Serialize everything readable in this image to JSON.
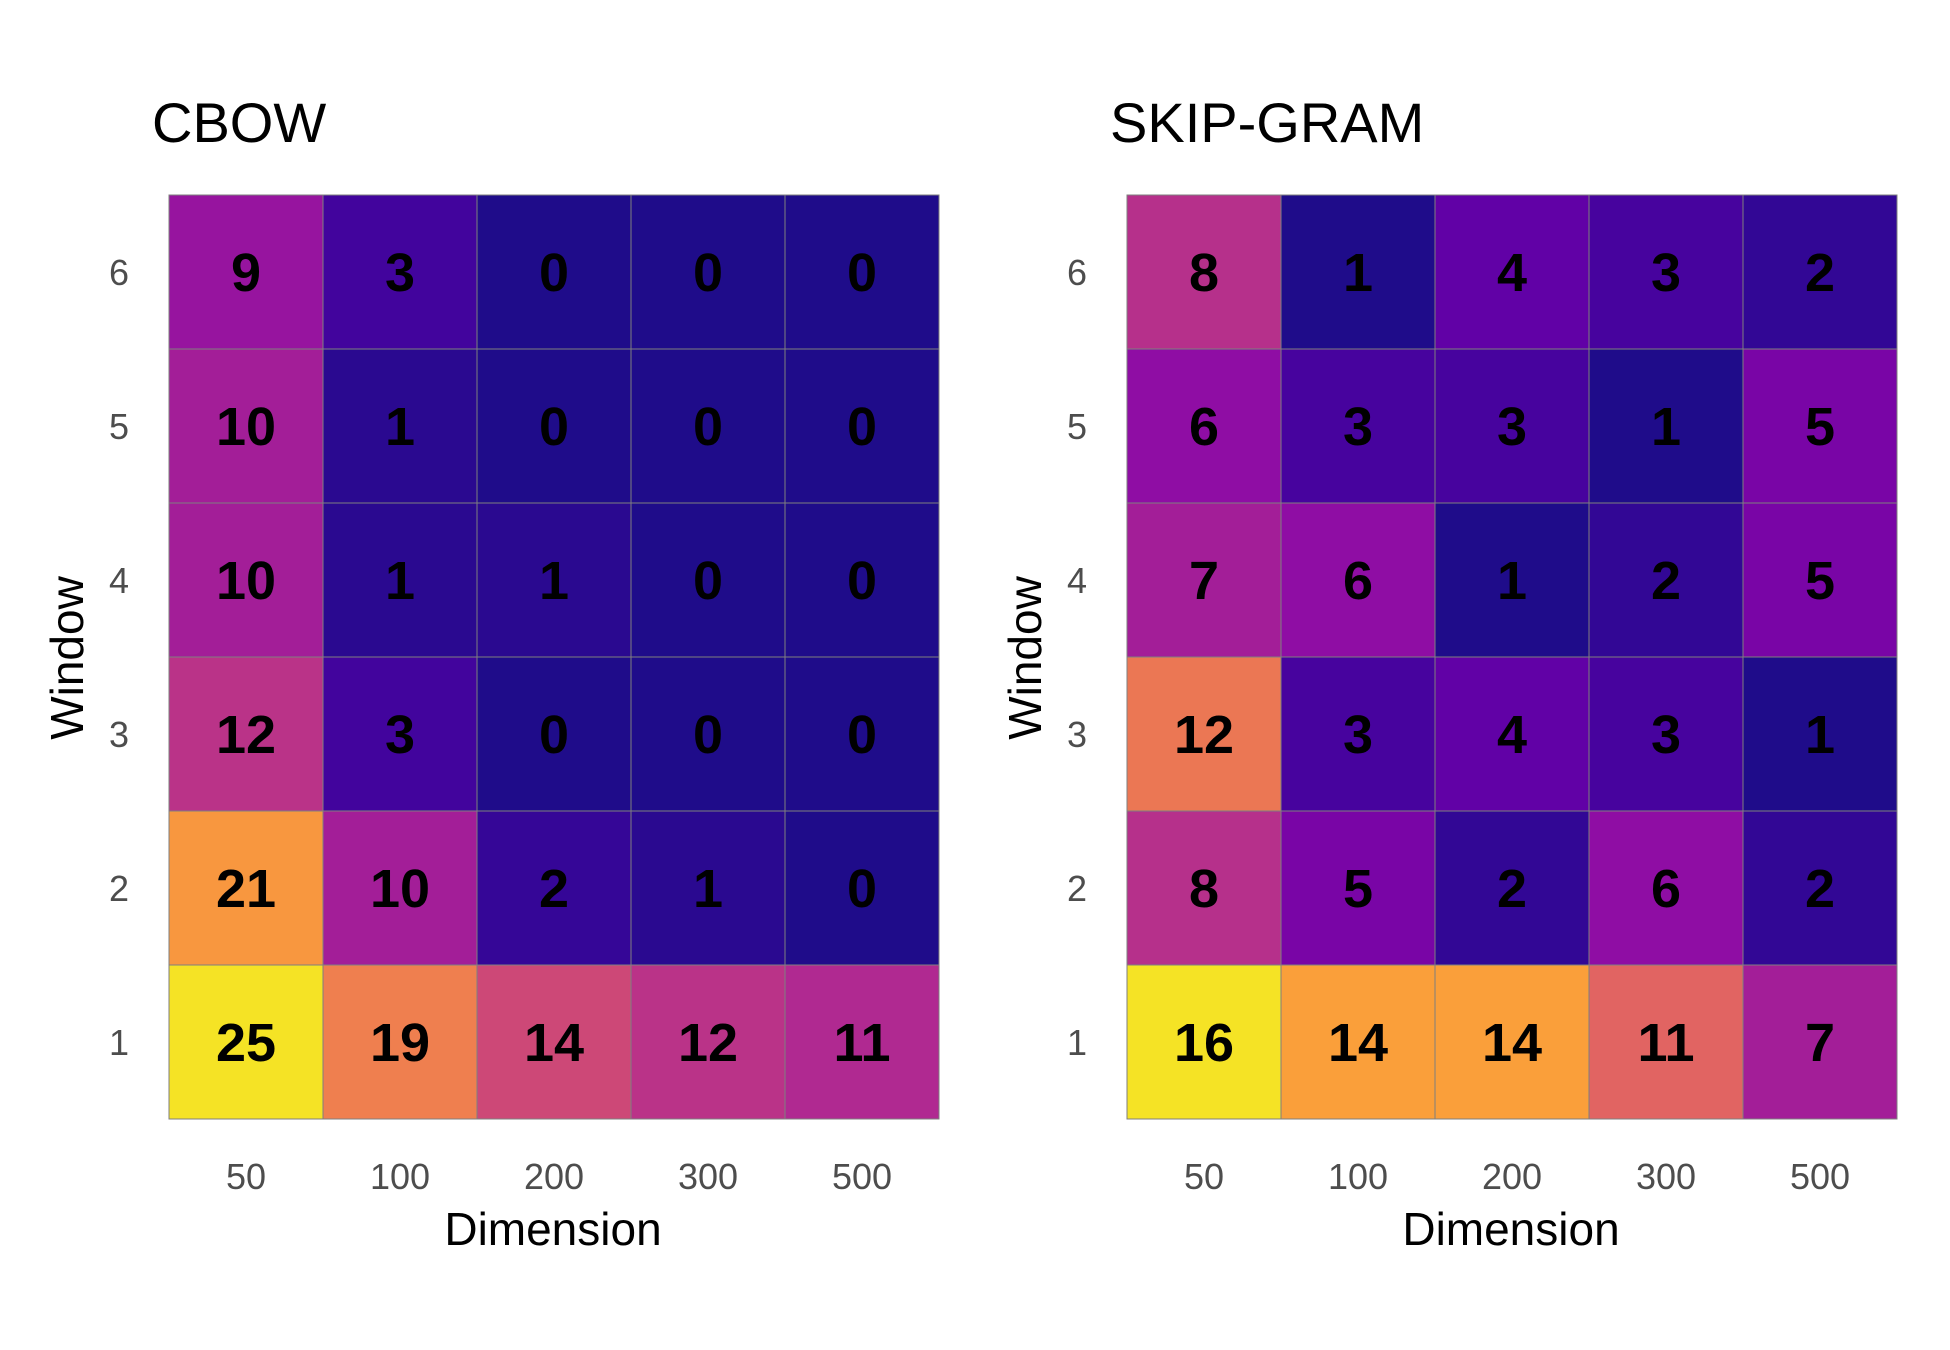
{
  "chart_data": [
    {
      "type": "heatmap",
      "title": "CBOW",
      "xlabel": "Dimension",
      "ylabel": "Window",
      "x_categories": [
        "50",
        "100",
        "200",
        "300",
        "500"
      ],
      "y_categories": [
        "1",
        "2",
        "3",
        "4",
        "5",
        "6"
      ],
      "values": [
        [
          25,
          19,
          14,
          12,
          11
        ],
        [
          21,
          10,
          2,
          1,
          0
        ],
        [
          12,
          3,
          0,
          0,
          0
        ],
        [
          10,
          1,
          1,
          0,
          0
        ],
        [
          10,
          1,
          0,
          0,
          0
        ],
        [
          9,
          3,
          0,
          0,
          0
        ]
      ],
      "colormap": "plasma",
      "cell_border_color": "#7f7f7f",
      "grid": false,
      "legend": false
    },
    {
      "type": "heatmap",
      "title": "SKIP-GRAM",
      "xlabel": "Dimension",
      "ylabel": "Window",
      "x_categories": [
        "50",
        "100",
        "200",
        "300",
        "500"
      ],
      "y_categories": [
        "1",
        "2",
        "3",
        "4",
        "5",
        "6"
      ],
      "values": [
        [
          16,
          14,
          14,
          11,
          7
        ],
        [
          8,
          5,
          2,
          6,
          2
        ],
        [
          12,
          3,
          4,
          3,
          1
        ],
        [
          7,
          6,
          1,
          2,
          5
        ],
        [
          6,
          3,
          3,
          1,
          5
        ],
        [
          8,
          1,
          4,
          3,
          2
        ]
      ],
      "colormap": "plasma",
      "cell_border_color": "#7f7f7f",
      "grid": false,
      "legend": false
    }
  ],
  "colors": {
    "plasma_stops": [
      "#1f0c8a",
      "#3e049c",
      "#6a00a8",
      "#8f0da4",
      "#b12a90",
      "#cc4778",
      "#e16462",
      "#f2844b",
      "#fca636",
      "#f5e325"
    ],
    "tick_text": "#4d4d4d",
    "label_text": "#000000"
  }
}
